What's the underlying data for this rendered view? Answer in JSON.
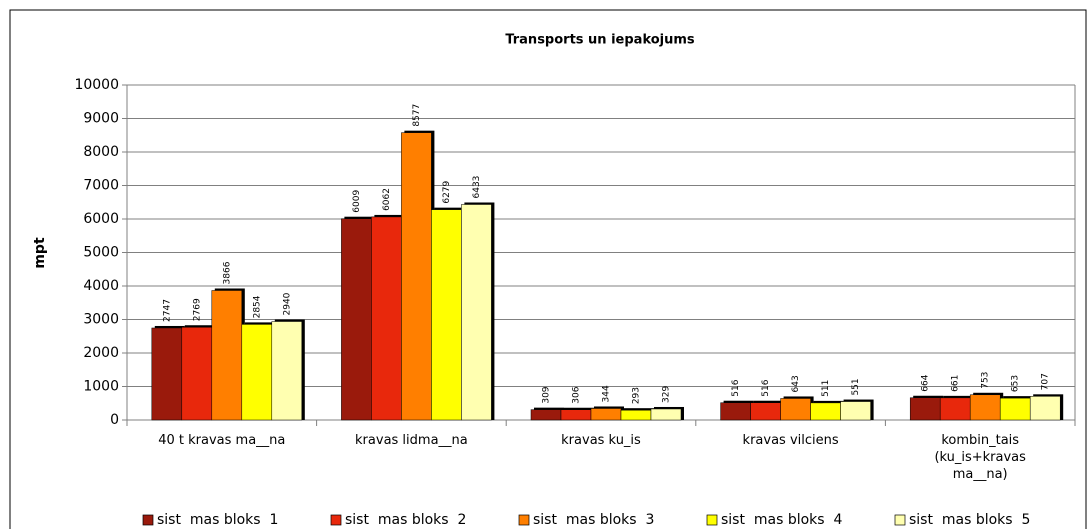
{
  "chart_data": {
    "type": "bar",
    "title": "Transports un iepakojums",
    "y_label": "mpt",
    "categories": [
      "40 t kravas ma__na",
      "kravas lidma__na",
      "kravas ku_is",
      "kravas vilciens",
      "kombin_tais (ku_is+kravas ma__na)"
    ],
    "series": [
      {
        "name": "sist  mas bloks  1",
        "color": "#9a1a0c",
        "values": [
          2747,
          6009,
          309,
          516,
          664
        ]
      },
      {
        "name": "sist  mas bloks  2",
        "color": "#e8280c",
        "values": [
          2769,
          6062,
          306,
          516,
          661
        ]
      },
      {
        "name": "sist  mas bloks  3",
        "color": "#ff7f00",
        "values": [
          3866,
          8577,
          344,
          643,
          753
        ]
      },
      {
        "name": "sist  mas bloks  4",
        "color": "#ffff00",
        "values": [
          2854,
          6279,
          293,
          511,
          653
        ]
      },
      {
        "name": "sist  mas bloks  5",
        "color": "#ffffb0",
        "values": [
          2940,
          6433,
          329,
          551,
          707
        ]
      }
    ],
    "ylim": [
      0,
      10000
    ],
    "yticks": [
      0,
      1000,
      2000,
      3000,
      4000,
      5000,
      6000,
      7000,
      8000,
      9000,
      10000
    ],
    "grid": true,
    "legend": "bottom"
  }
}
